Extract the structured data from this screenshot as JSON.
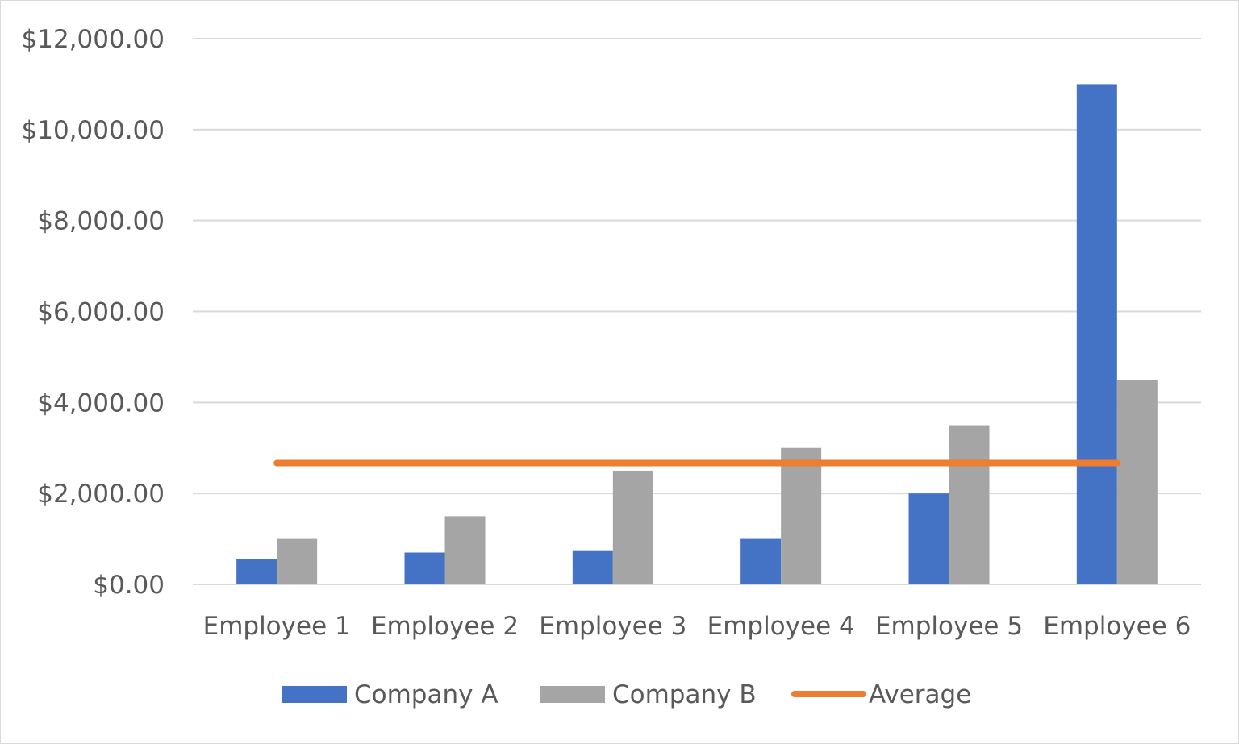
{
  "chart_data": {
    "type": "bar",
    "categories": [
      "Employee 1",
      "Employee 2",
      "Employee 3",
      "Employee 4",
      "Employee 5",
      "Employee 6"
    ],
    "series": [
      {
        "name": "Company A",
        "type": "bar",
        "color": "#4472c4",
        "values": [
          550,
          700,
          750,
          1000,
          2000,
          11000
        ]
      },
      {
        "name": "Company B",
        "type": "bar",
        "color": "#a5a5a5",
        "values": [
          1000,
          1500,
          2500,
          3000,
          3500,
          4500
        ]
      },
      {
        "name": "Average",
        "type": "line",
        "color": "#ed7d31",
        "values": [
          2667,
          2667,
          2667,
          2667,
          2667,
          2667
        ]
      }
    ],
    "ylim": [
      0,
      12000
    ],
    "yticks": [
      0,
      2000,
      4000,
      6000,
      8000,
      10000,
      12000
    ],
    "ytick_labels": [
      "$0.00",
      "$2,000.00",
      "$4,000.00",
      "$6,000.00",
      "$8,000.00",
      "$10,000.00",
      "$12,000.00"
    ],
    "grid": true,
    "legend_position": "bottom",
    "title": "",
    "xlabel": "",
    "ylabel": ""
  }
}
